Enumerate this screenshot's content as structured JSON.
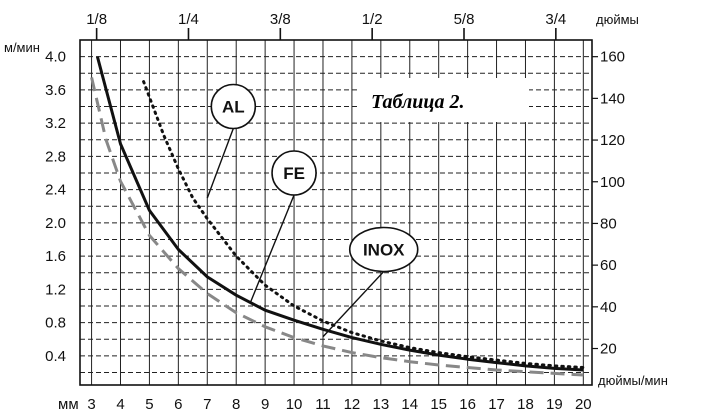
{
  "chart_data": {
    "type": "line",
    "title": "Таблица 2.",
    "xlabel": "мм",
    "ylabel": "м/мин",
    "y2label": "дюймы/мин",
    "x2label": "дюймы",
    "x_ticks": [
      3,
      4,
      5,
      6,
      7,
      8,
      9,
      10,
      11,
      12,
      13,
      14,
      15,
      16,
      17,
      18,
      19,
      20
    ],
    "y_ticks": [
      "0.4",
      "0.8",
      "1.2",
      "1.6",
      "2.0",
      "2.4",
      "2.8",
      "3.2",
      "3.6",
      "4.0"
    ],
    "y2_ticks": [
      "20",
      "40",
      "60",
      "80",
      "100",
      "120",
      "140",
      "160"
    ],
    "x2_ticks": [
      {
        "label": "1/8",
        "mm": 3.175
      },
      {
        "label": "1/4",
        "mm": 6.35
      },
      {
        "label": "3/8",
        "mm": 9.525
      },
      {
        "label": "1/2",
        "mm": 12.7
      },
      {
        "label": "5/8",
        "mm": 15.875
      },
      {
        "label": "3/4",
        "mm": 19.05
      }
    ],
    "xlim": [
      2.6,
      20.3
    ],
    "ylim": [
      0.05,
      4.2
    ],
    "y2lim": [
      2.5,
      168
    ],
    "grid": true,
    "series": [
      {
        "name": "AL",
        "style": "dotted",
        "color": "#111111",
        "x": [
          4.8,
          5.5,
          6,
          6.5,
          7,
          8,
          9,
          10,
          11,
          12,
          13,
          14,
          15,
          16,
          17,
          18,
          19,
          20
        ],
        "y": [
          3.7,
          3.05,
          2.65,
          2.3,
          2.05,
          1.6,
          1.25,
          1.0,
          0.82,
          0.68,
          0.58,
          0.5,
          0.44,
          0.39,
          0.35,
          0.31,
          0.28,
          0.26
        ]
      },
      {
        "name": "FE",
        "style": "solid",
        "color": "#111111",
        "x": [
          3.2,
          4,
          5,
          6,
          7,
          8,
          9,
          10,
          11,
          12,
          13,
          14,
          15,
          16,
          17,
          18,
          19,
          20
        ],
        "y": [
          4.0,
          2.95,
          2.15,
          1.68,
          1.35,
          1.13,
          0.95,
          0.83,
          0.72,
          0.62,
          0.54,
          0.47,
          0.41,
          0.36,
          0.32,
          0.28,
          0.25,
          0.23
        ]
      },
      {
        "name": "INOX",
        "style": "dashed",
        "color": "#888888",
        "x": [
          3,
          3.5,
          4,
          5,
          6,
          7,
          8,
          9,
          10,
          11,
          12,
          13,
          14,
          15,
          16,
          17,
          18,
          19,
          20
        ],
        "y": [
          3.75,
          3.0,
          2.5,
          1.85,
          1.45,
          1.15,
          0.92,
          0.75,
          0.62,
          0.52,
          0.44,
          0.38,
          0.33,
          0.29,
          0.26,
          0.23,
          0.21,
          0.19,
          0.17
        ]
      }
    ],
    "tags": [
      {
        "label": "AL",
        "at_x": 7.0,
        "at_y": 2.3,
        "tag_x": 7.9,
        "tag_y": 3.4
      },
      {
        "label": "FE",
        "at_x": 8.5,
        "at_y": 1.05,
        "tag_x": 10.0,
        "tag_y": 2.6
      },
      {
        "label": "INOX",
        "at_x": 11.0,
        "at_y": 0.63,
        "tag_x": 13.1,
        "tag_y": 1.68
      }
    ]
  }
}
